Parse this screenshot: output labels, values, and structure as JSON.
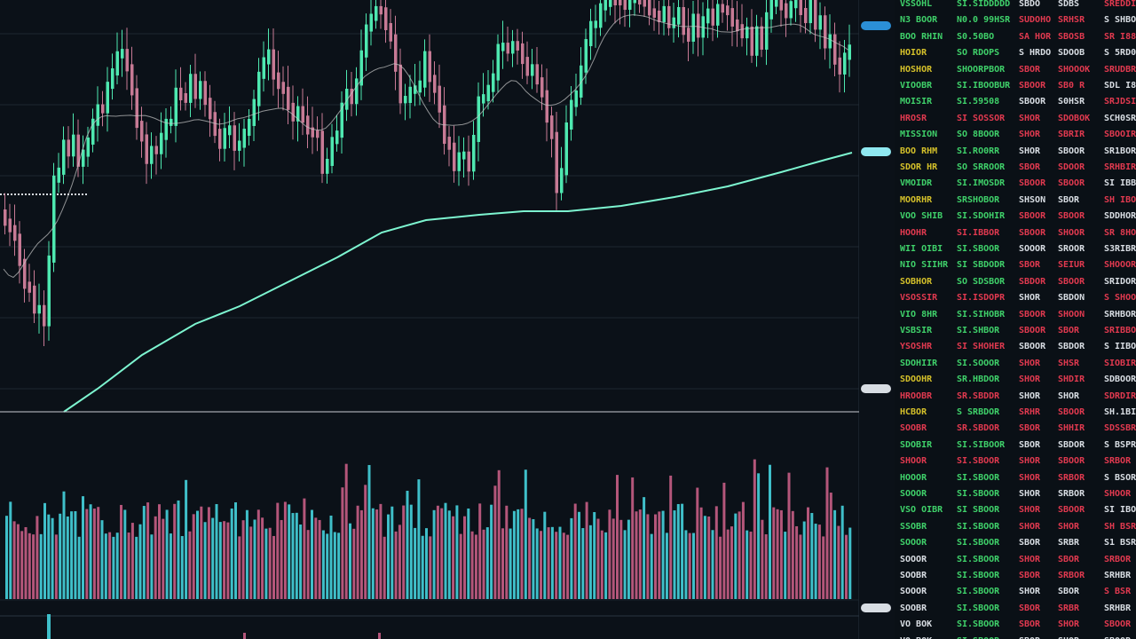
{
  "colors": {
    "background": "#0b1118",
    "up": "#4ee8b0",
    "down": "#c77a95",
    "ma_long": "#7df5d0",
    "ma_short": "#c9c9c9",
    "volume_up": "#3fbfc9",
    "volume_down": "#b4567a",
    "green_text": "#3fd16a",
    "red_text": "#e0394f",
    "yellow_text": "#d4c02a",
    "white_text": "#d8dde3"
  },
  "price_axis": {
    "labels": [
      "",
      "",
      "",
      "",
      "",
      "",
      "",
      "",
      "",
      "",
      "",
      ""
    ],
    "tags": [
      {
        "text": "",
        "style": "blue"
      },
      {
        "text": "",
        "style": "cyan"
      },
      {
        "text": "",
        "style": "white"
      },
      {
        "text": "",
        "style": "white"
      }
    ]
  },
  "ticker_panel": {
    "rows": [
      [
        "VSSOHL",
        "SI.SIDDDDD",
        "SBDO",
        "SDBS",
        "SREDDI"
      ],
      [
        "N3 BOOR",
        "N0.0 99HSR",
        "SUDOHO",
        "SRHSR",
        "S SHBOO"
      ],
      [
        "BOO RHIN",
        "S0.50BO",
        "SA HOR",
        "SBOSB",
        "SR I888"
      ],
      [
        "HOIOR",
        "SO RDOPS",
        "S HRDO",
        "SDOOB",
        "S 5RD0"
      ],
      [
        "HOSHOR",
        "SHOORPBOR",
        "SBOR",
        "SHOOOK",
        "SRUDBR"
      ],
      [
        "VIOOBR",
        "SI.IBOOBUR",
        "SBOOR",
        "SB0 R",
        "SDL I8R"
      ],
      [
        "MOISIR",
        "SI.59508",
        "SBOOR",
        "S0HSR",
        "SRJDSIR"
      ],
      [
        "HROSR",
        "SI SOSSOR",
        "SHOR",
        "SDOBOK",
        "SCH0SR"
      ],
      [
        "MISSION",
        "SO 8BOOR",
        "SHOR",
        "SBRIR",
        "SBOOIR"
      ],
      [
        "BOO RHM",
        "SI.RO0RR",
        "SHOR",
        "SBOOR",
        "SR1BOR"
      ],
      [
        "SDOR HR",
        "SO SRROOR",
        "SBOR",
        "SDOOR",
        "SRHBIR"
      ],
      [
        "VMOIDR",
        "SI.IMOSDR",
        "SBOOR",
        "SBOOR",
        "SI IBBR"
      ],
      [
        "MOORHR",
        "SRSHOBOR",
        "SHSON",
        "SBOR",
        "SH IBOR"
      ],
      [
        "VOO SHIB",
        "SI.SDOHIR",
        "SBOOR",
        "SBOOR",
        "SDDHOR"
      ],
      [
        "HOOHR",
        "SI.IBBOR",
        "SBOOR",
        "SHOOR",
        "SR 8HOR"
      ],
      [
        "WII OIBI",
        "SI.SBOOR",
        "SOOOR",
        "SROOR",
        "S3RIBR"
      ],
      [
        "NIO SIIHR",
        "SI SBDODR",
        "SBOR",
        "SEIUR",
        "SHOOOR"
      ],
      [
        "SOBHOR",
        "SO SDSBOR",
        "SBDOR",
        "SBOOR",
        "SRIDOR"
      ],
      [
        "VSOSSIR",
        "SI.ISDOPR",
        "SHOR",
        "SBDON",
        "S SHOOR"
      ],
      [
        "VIO 8HR",
        "SI.SIHOBR",
        "SBOOR",
        "SHOON",
        "SRHBOR"
      ],
      [
        "VSBSIR",
        "SI.SHBOR",
        "SBOOR",
        "SBOR",
        "SRIBBOR"
      ],
      [
        "YSOSHR",
        "SI SHOHER",
        "SBOOR",
        "SBDOR",
        "S IIBOR"
      ],
      [
        "SDOHIIR",
        "SI.SOOOR",
        "SHOR",
        "SHSR",
        "SIOBIR"
      ],
      [
        "SDOOHR",
        "SR.HBDOR",
        "SHOR",
        "SHDIR",
        "SDBOOR"
      ],
      [
        "HROOBR",
        "SR.SBDDR",
        "SHOR",
        "SHOR",
        "SDRDIR"
      ],
      [
        "HCBOR",
        "S SRBDOR",
        "SRHR",
        "SBOOR",
        "SH.1BIR"
      ],
      [
        "SOOBR",
        "SR.SBDOR",
        "SBOR",
        "SHHIR",
        "SDSSBR"
      ],
      [
        "SDOBIR",
        "SI.SIBOOR",
        "SBOR",
        "SBDOR",
        "S BSPR"
      ],
      [
        "SHOOR",
        "SI.SBOOR",
        "SHOR",
        "SBOOR",
        "SRBOR"
      ],
      [
        "HOOOR",
        "SI.SBOOR",
        "SHOR",
        "SRBOR",
        "S BSOR"
      ],
      [
        "SOOOR",
        "SI.SBOOR",
        "SHOR",
        "SRBOR",
        "SHOOR"
      ],
      [
        "VSO OIBR",
        "SI SBOOR",
        "SHOR",
        "SBOOR",
        "SI IBOR"
      ],
      [
        "SSOBR",
        "SI.SBOOR",
        "SHOR",
        "SHOR",
        "SH BSR"
      ],
      [
        "SOOOR",
        "SI.SBOOR",
        "SBOR",
        "SRBR",
        "S1 BSR"
      ],
      [
        "SOOOR",
        "SI.SBOOR",
        "SHOR",
        "SBOR",
        "SRBOR"
      ],
      [
        "SOOBR",
        "SI.SBOOR",
        "SBOR",
        "SRBOR",
        "SRHBR"
      ],
      [
        "SOOOR",
        "SI.SBOOR",
        "SHOR",
        "SBOR",
        "S BSR"
      ],
      [
        "SOOBR",
        "SI.SBOOR",
        "SBOR",
        "SRBR",
        "SRHBR"
      ],
      [
        "VO BOK",
        "SI.SBOOR",
        "SBOR",
        "SHOR",
        "SBOOR"
      ],
      [
        "VO BOK",
        "SI.SBOOR",
        "SBOR",
        "SHOR",
        "SBOOR"
      ]
    ],
    "row_colors": [
      "c",
      "g",
      "g",
      "y",
      "y",
      "g",
      "g",
      "r",
      "g",
      "y",
      "y",
      "g",
      "y",
      "g",
      "r",
      "g",
      "g",
      "y",
      "r",
      "g",
      "g",
      "r",
      "g",
      "y",
      "r",
      "y",
      "r",
      "g",
      "r",
      "g",
      "g",
      "g",
      "g",
      "g",
      "w",
      "w",
      "w",
      "w",
      "w",
      "w"
    ]
  }
}
